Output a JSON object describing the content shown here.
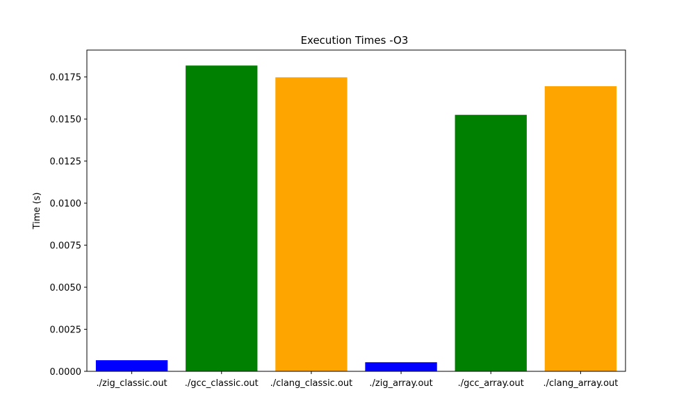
{
  "chart_data": {
    "type": "bar",
    "title": "Execution Times -O3",
    "xlabel": "",
    "ylabel": "Time (s)",
    "categories": [
      "./zig_classic.out",
      "./gcc_classic.out",
      "./clang_classic.out",
      "./zig_array.out",
      "./gcc_array.out",
      "./clang_array.out"
    ],
    "values": [
      0.00066,
      0.01818,
      0.01748,
      0.00054,
      0.01525,
      0.01695
    ],
    "bar_colors": [
      "#0000ff",
      "#008000",
      "#ffa500",
      "#0000ff",
      "#008000",
      "#ffa500"
    ],
    "ylim": [
      0,
      0.0191
    ],
    "yticks": [
      0,
      0.0025,
      0.005,
      0.0075,
      0.01,
      0.0125,
      0.015,
      0.0175
    ],
    "ytick_labels": [
      "0.0000",
      "0.0025",
      "0.0050",
      "0.0075",
      "0.0100",
      "0.0125",
      "0.0150",
      "0.0175"
    ],
    "grid": false,
    "legend": "none"
  }
}
